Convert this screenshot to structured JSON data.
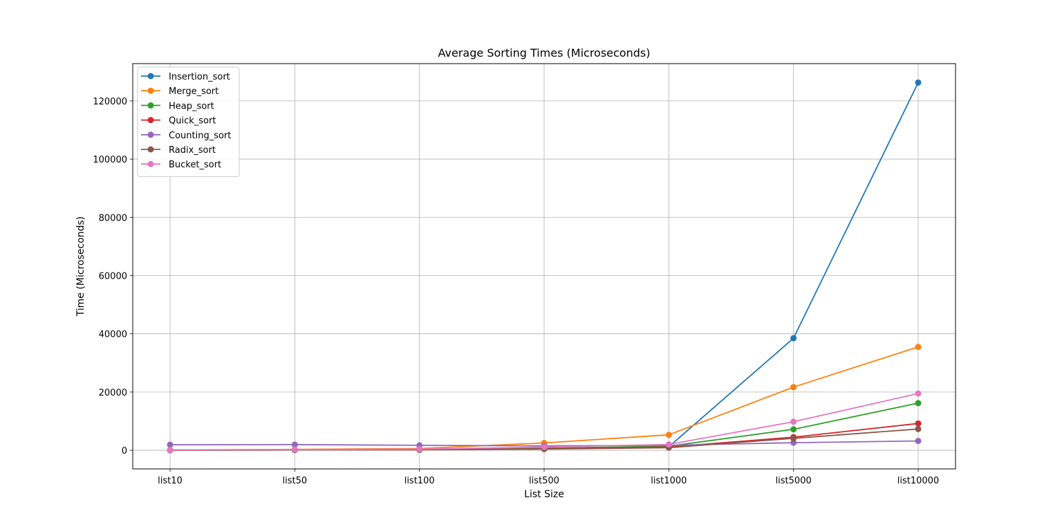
{
  "chart_data": {
    "type": "line",
    "title": "Average Sorting Times (Microseconds)",
    "xlabel": "List Size",
    "ylabel": "Time (Microseconds)",
    "categories": [
      "list10",
      "list50",
      "list100",
      "list500",
      "list1000",
      "list5000",
      "list10000"
    ],
    "ylim": [
      -6400,
      132800
    ],
    "yticks": [
      0,
      20000,
      40000,
      60000,
      80000,
      100000,
      120000
    ],
    "grid": true,
    "legend_position": "top-left",
    "series": [
      {
        "name": "Insertion_sort",
        "color": "#1f77b4",
        "values": [
          30,
          150,
          300,
          600,
          1200,
          38500,
          126300
        ]
      },
      {
        "name": "Merge_sort",
        "color": "#ff7f0e",
        "values": [
          100,
          300,
          600,
          2500,
          5300,
          21700,
          35500
        ]
      },
      {
        "name": "Heap_sort",
        "color": "#2ca02c",
        "values": [
          60,
          150,
          250,
          700,
          1400,
          7200,
          16200
        ]
      },
      {
        "name": "Quick_sort",
        "color": "#d62728",
        "values": [
          40,
          100,
          200,
          500,
          1100,
          4500,
          9200
        ]
      },
      {
        "name": "Counting_sort",
        "color": "#9467bd",
        "values": [
          1900,
          1950,
          1700,
          1500,
          1700,
          2600,
          3200
        ]
      },
      {
        "name": "Radix_sort",
        "color": "#8c564b",
        "values": [
          40,
          100,
          150,
          400,
          900,
          4100,
          7300
        ]
      },
      {
        "name": "Bucket_sort",
        "color": "#e377c2",
        "values": [
          100,
          250,
          400,
          1100,
          2000,
          9800,
          19500
        ]
      }
    ]
  }
}
